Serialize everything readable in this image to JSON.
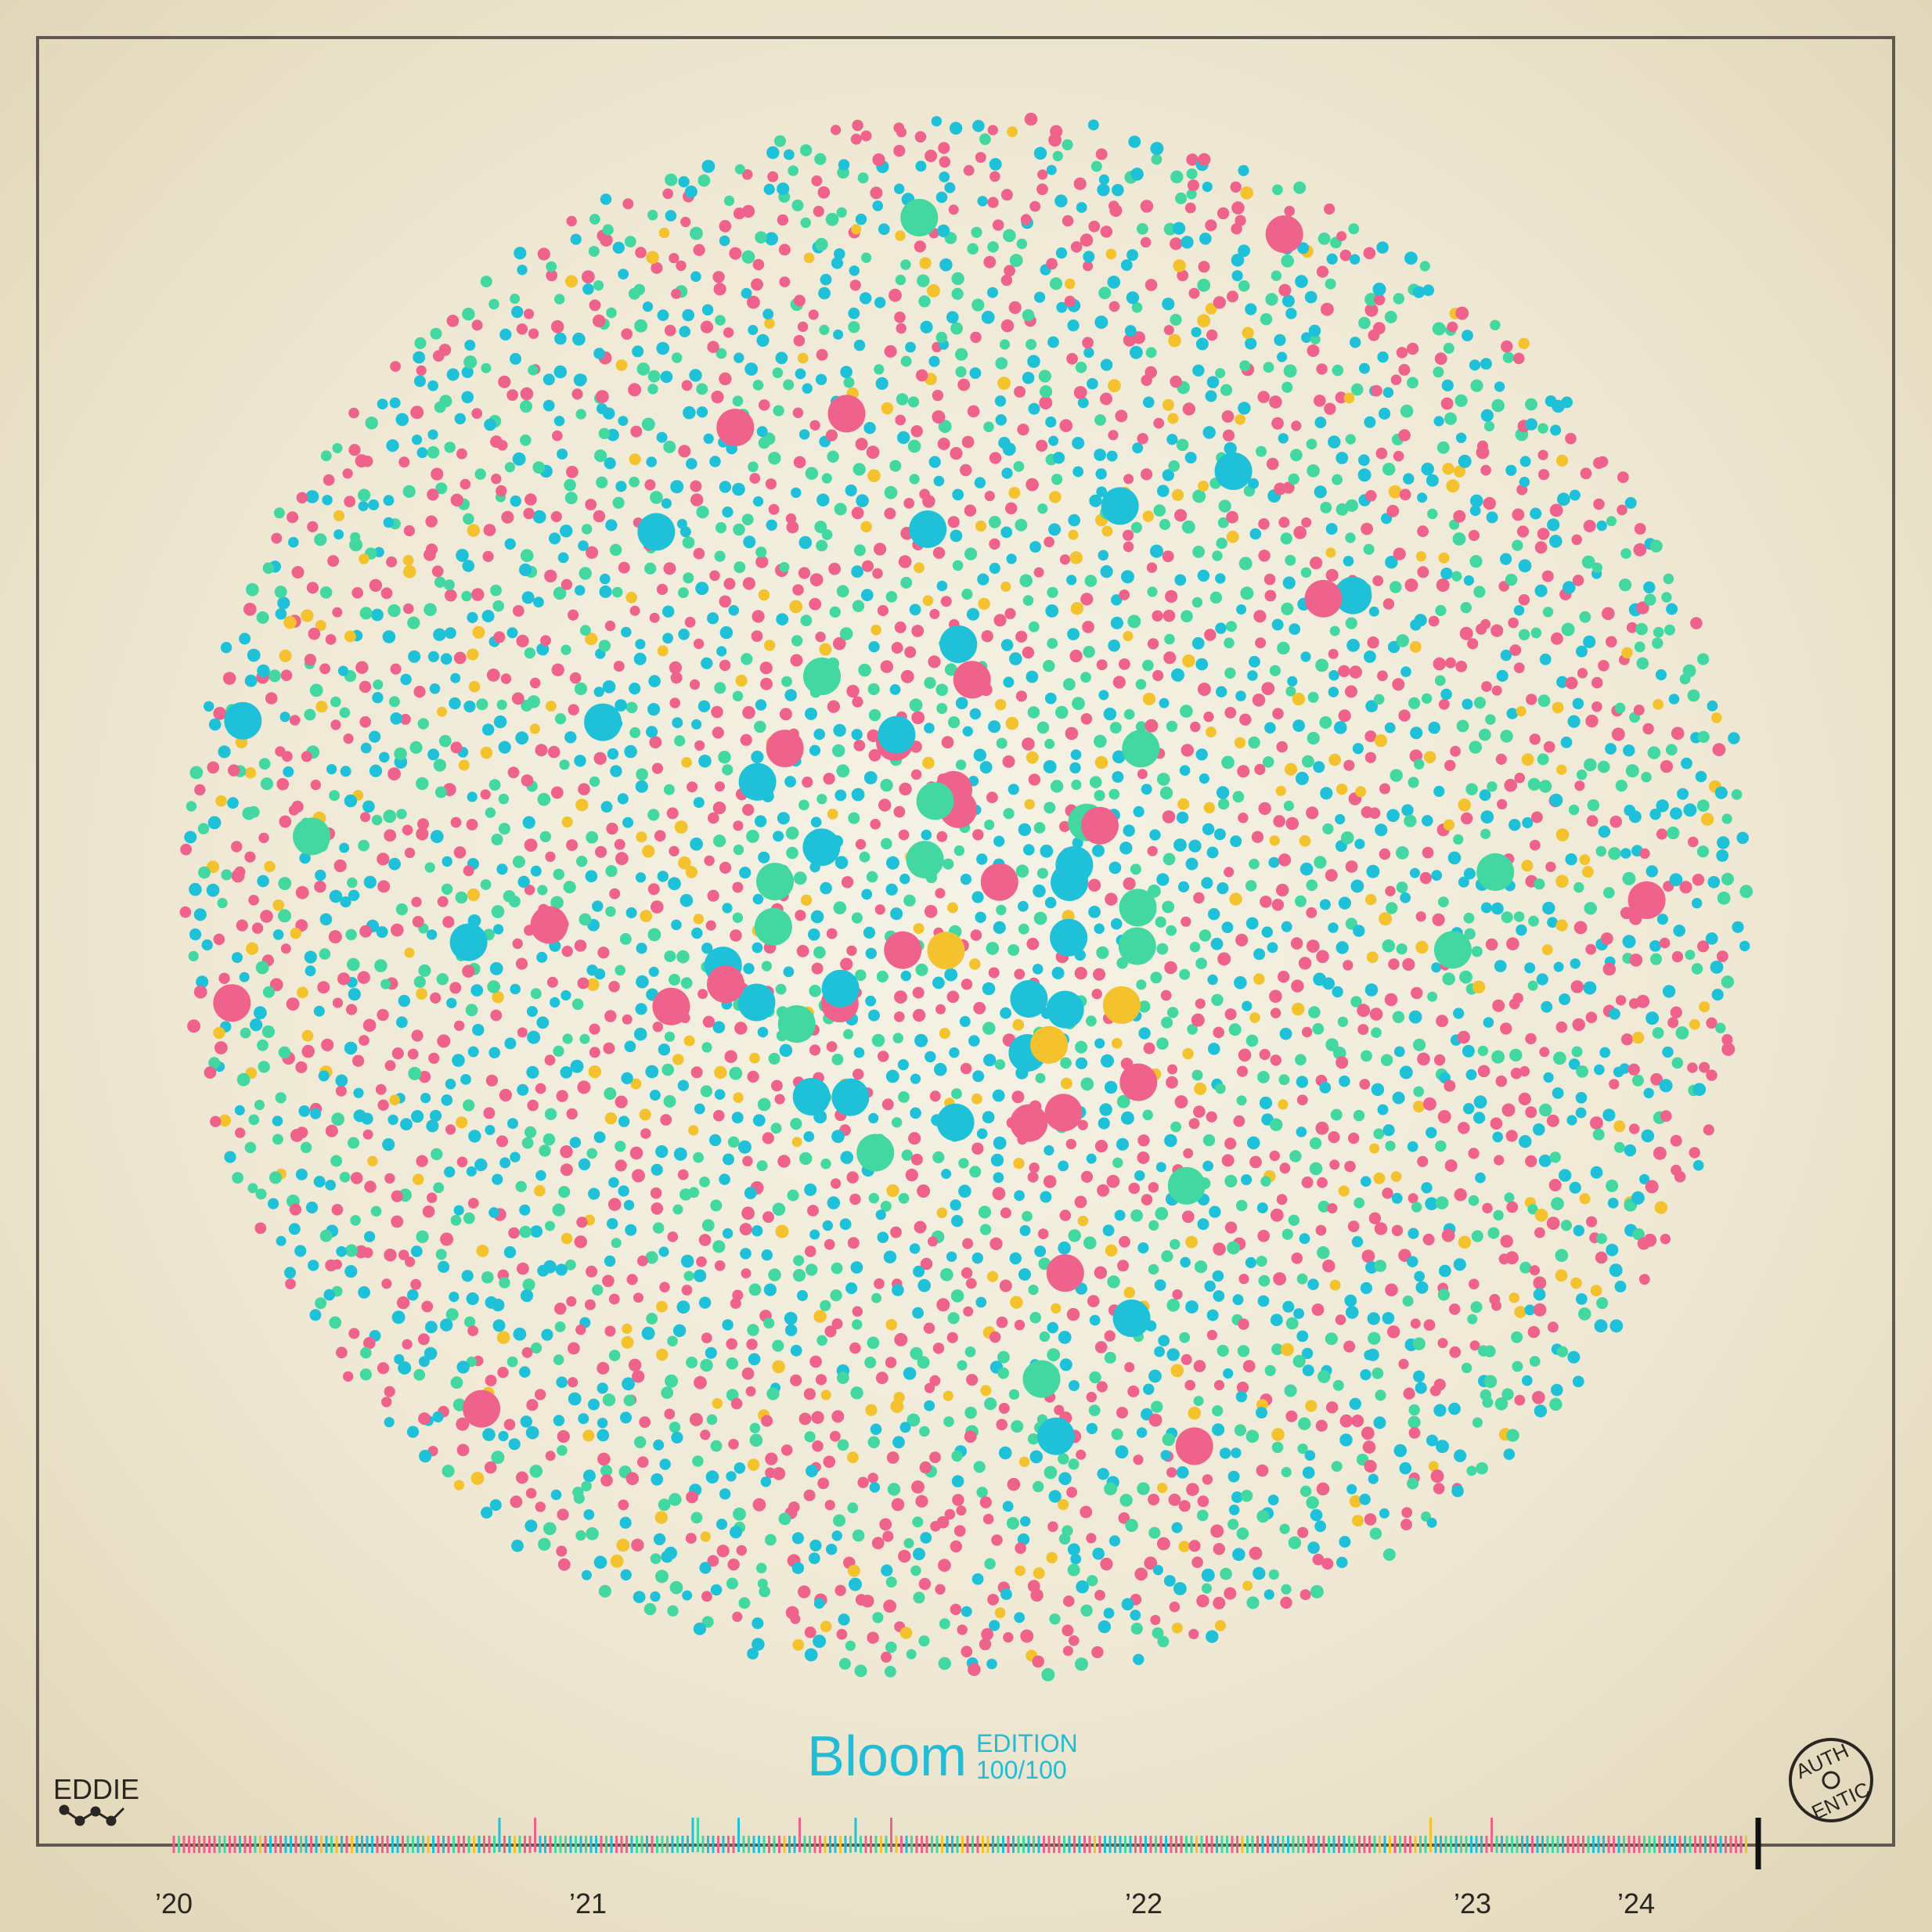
{
  "title": "Bloom",
  "edition": {
    "label": "EDITION",
    "number": "100/100"
  },
  "brand": "EDDIE",
  "stamp": {
    "top": "AUTH",
    "bottom": "ENTIC"
  },
  "timeline": {
    "labels": [
      "’20",
      "’21",
      "’22",
      "’23",
      "’24"
    ]
  }
}
